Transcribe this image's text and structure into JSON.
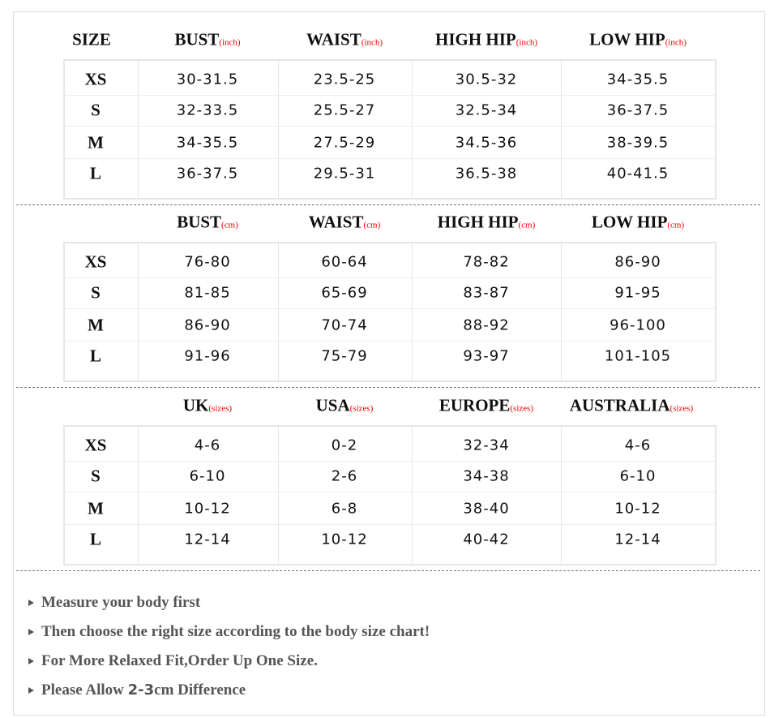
{
  "size_header": "SIZE",
  "sections": [
    {
      "columns": [
        {
          "label": "BUST",
          "unit": "(inch)"
        },
        {
          "label": "WAIST",
          "unit": "(inch)"
        },
        {
          "label": "HIGH HIP",
          "unit": "(inch)"
        },
        {
          "label": "LOW HIP",
          "unit": "(inch)"
        }
      ],
      "rows": [
        [
          "XS",
          "30-31.5",
          "23.5-25",
          "30.5-32",
          "34-35.5"
        ],
        [
          "S",
          "32-33.5",
          "25.5-27",
          "32.5-34",
          "36-37.5"
        ],
        [
          "M",
          "34-35.5",
          "27.5-29",
          "34.5-36",
          "38-39.5"
        ],
        [
          "L",
          "36-37.5",
          "29.5-31",
          "36.5-38",
          "40-41.5"
        ]
      ]
    },
    {
      "columns": [
        {
          "label": "BUST",
          "unit": "(cm)"
        },
        {
          "label": "WAIST",
          "unit": "(cm)"
        },
        {
          "label": "HIGH HIP",
          "unit": "(cm)"
        },
        {
          "label": "LOW HIP",
          "unit": "(cm)"
        }
      ],
      "rows": [
        [
          "XS",
          "76-80",
          "60-64",
          "78-82",
          "86-90"
        ],
        [
          "S",
          "81-85",
          "65-69",
          "83-87",
          "91-95"
        ],
        [
          "M",
          "86-90",
          "70-74",
          "88-92",
          "96-100"
        ],
        [
          "L",
          "91-96",
          "75-79",
          "93-97",
          "101-105"
        ]
      ]
    },
    {
      "columns": [
        {
          "label": "UK",
          "unit": "(sizes)"
        },
        {
          "label": "USA",
          "unit": "(sizes)"
        },
        {
          "label": "EUROPE",
          "unit": "(sizes)"
        },
        {
          "label": "AUSTRALIA",
          "unit": "(sizes)"
        }
      ],
      "rows": [
        [
          "XS",
          "4-6",
          "0-2",
          "32-34",
          "4-6"
        ],
        [
          "S",
          "6-10",
          "2-6",
          "34-38",
          "6-10"
        ],
        [
          "M",
          "10-12",
          "6-8",
          "38-40",
          "10-12"
        ],
        [
          "L",
          "12-14",
          "10-12",
          "40-42",
          "12-14"
        ]
      ]
    }
  ],
  "notes": [
    [
      "Measure your body first"
    ],
    [
      "Then choose the right size according to the body size chart!"
    ],
    [
      "For More Relaxed Fit,Order Up One Size."
    ],
    [
      "Please Allow ",
      "2-3",
      "cm Difference"
    ]
  ]
}
